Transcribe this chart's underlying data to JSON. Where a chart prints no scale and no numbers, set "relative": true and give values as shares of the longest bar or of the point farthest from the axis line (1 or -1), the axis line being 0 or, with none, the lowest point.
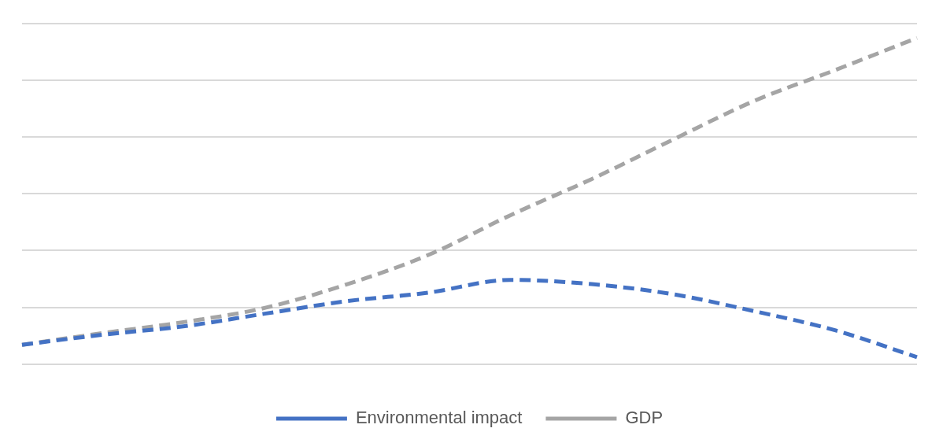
{
  "chart_data": {
    "type": "line",
    "relative": true,
    "categories": [
      null,
      null,
      null,
      null,
      null,
      null,
      null,
      null,
      null,
      null,
      null,
      null
    ],
    "series": [
      {
        "name": "Environmental impact",
        "color": "#4472c4",
        "values": [
          0.059,
          0.09,
          0.116,
          0.155,
          0.193,
          0.219,
          0.258,
          0.245,
          0.214,
          0.162,
          0.103,
          0.021
        ]
      },
      {
        "name": "GDP",
        "color": "#a5a5a5",
        "values": [
          0.059,
          0.095,
          0.129,
          0.173,
          0.245,
          0.335,
          0.456,
          0.567,
          0.688,
          0.807,
          0.902,
          1
        ]
      }
    ],
    "grid": "y",
    "legend": "bottom",
    "marker": "none",
    "line_style": "dashed"
  }
}
